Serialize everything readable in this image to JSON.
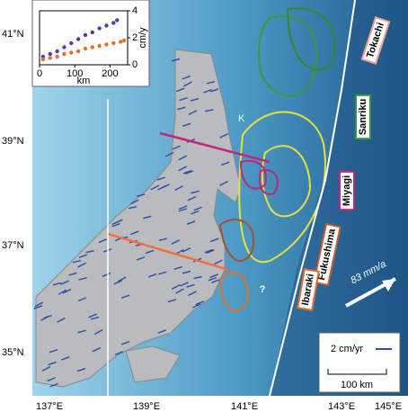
{
  "inset": {
    "xlabel": "km",
    "ylabel": "cm/y",
    "xlim": [
      0,
      250
    ],
    "ylim": [
      0,
      4
    ],
    "xticks": [
      0,
      100,
      200
    ],
    "yticks": [
      0,
      2,
      4
    ],
    "series": [
      {
        "color": "#5b3a9e",
        "x": [
          10,
          30,
          50,
          70,
          90,
          110,
          130,
          150,
          170,
          190,
          210,
          220
        ],
        "values": [
          0.6,
          0.8,
          1.0,
          1.3,
          1.6,
          1.9,
          2.2,
          2.4,
          2.7,
          2.9,
          3.1,
          3.3
        ]
      },
      {
        "color": "#e07030",
        "x": [
          10,
          30,
          50,
          70,
          90,
          110,
          130,
          150,
          170,
          190,
          210,
          230,
          240
        ],
        "values": [
          0.4,
          0.5,
          0.6,
          0.8,
          0.9,
          1.0,
          1.2,
          1.3,
          1.4,
          1.5,
          1.6,
          1.7,
          1.8
        ]
      }
    ]
  },
  "latitude_labels": [
    "41°N",
    "39°N",
    "37°N",
    "35°N"
  ],
  "longitude_labels": [
    "137°E",
    "139°E",
    "141°E",
    "143°E",
    "145°E"
  ],
  "trench_segments": [
    "Tokachi",
    "Sanriku",
    "Miyagi",
    "Fukushima",
    "Ibaraki"
  ],
  "plate_rate": "83 mm/a",
  "question": "?",
  "site_label": "K",
  "legend": {
    "velocity": "2 cm/yr",
    "scale": "100 km"
  }
}
